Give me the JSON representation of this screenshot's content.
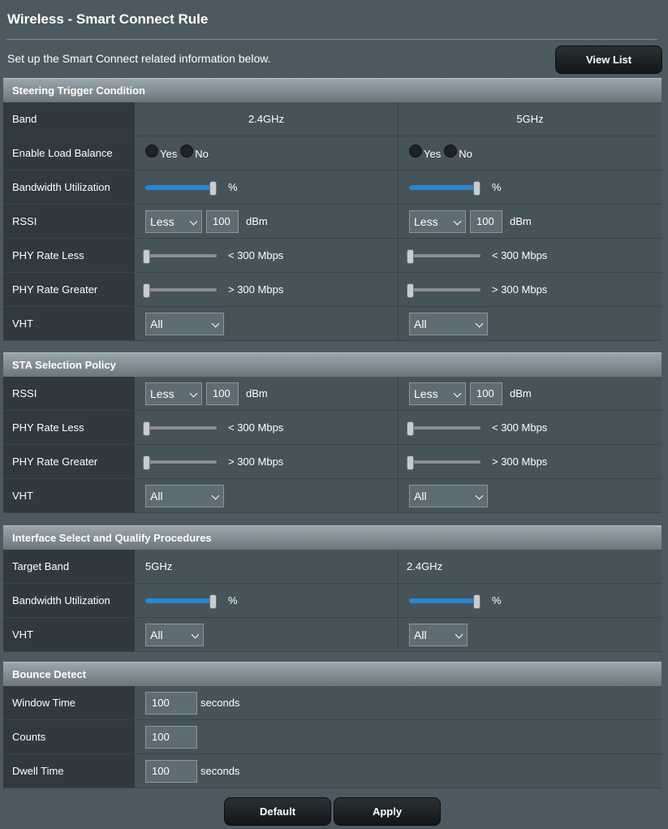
{
  "page": {
    "title": "Wireless - Smart Connect Rule",
    "intro": "Set up the Smart Connect related information below.",
    "view_list": "View List"
  },
  "steering": {
    "title": "Steering Trigger Condition",
    "band_label": "Band",
    "band_a": "2.4GHz",
    "band_b": "5GHz",
    "load_balance_label": "Enable Load Balance",
    "yes": "Yes",
    "no": "No",
    "bw_label": "Bandwidth Utilization",
    "bw_unit": "%",
    "bw_a_level": 1.0,
    "bw_b_level": 1.0,
    "rssi_label": "RSSI",
    "rssi_op_a": "Less",
    "rssi_val_a": "100",
    "rssi_op_b": "Less",
    "rssi_val_b": "100",
    "dbm": "dBm",
    "phy_less_label": "PHY Rate Less",
    "phy_less_text": "< 300 Mbps",
    "phy_greater_label": "PHY Rate Greater",
    "phy_greater_text": "> 300 Mbps",
    "vht_label": "VHT",
    "vht_a": "All",
    "vht_b": "All"
  },
  "sta": {
    "title": "STA Selection Policy",
    "rssi_label": "RSSI",
    "rssi_op_a": "Less",
    "rssi_val_a": "100",
    "rssi_op_b": "Less",
    "rssi_val_b": "100",
    "dbm": "dBm",
    "phy_less_label": "PHY Rate Less",
    "phy_less_text": "< 300 Mbps",
    "phy_greater_label": "PHY Rate Greater",
    "phy_greater_text": "> 300 Mbps",
    "vht_label": "VHT",
    "vht_a": "All",
    "vht_b": "All"
  },
  "iface": {
    "title": "Interface Select and Qualify Procedures",
    "target_label": "Target Band",
    "target_a": "5GHz",
    "target_b": "2.4GHz",
    "bw_label": "Bandwidth Utilization",
    "bw_unit": "%",
    "bw_a_level": 1.0,
    "bw_b_level": 1.0,
    "vht_label": "VHT",
    "vht_a": "All",
    "vht_b": "All"
  },
  "bounce": {
    "title": "Bounce Detect",
    "window_label": "Window Time",
    "window_val": "100",
    "seconds": "seconds",
    "counts_label": "Counts",
    "counts_val": "100",
    "dwell_label": "Dwell Time",
    "dwell_val": "100"
  },
  "footer": {
    "default": "Default",
    "apply": "Apply"
  }
}
